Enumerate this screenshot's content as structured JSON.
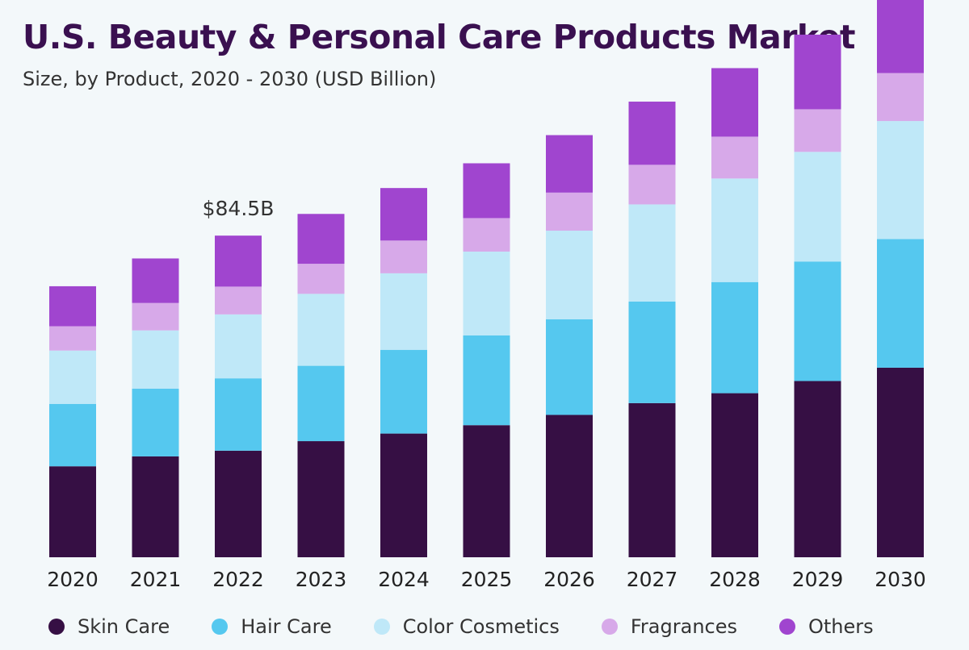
{
  "title": "U.S. Beauty & Personal Care Products Market",
  "subtitle": "Size, by Product, 2020 - 2030 (USD Billion)",
  "chart_data": {
    "type": "bar",
    "stacked": true,
    "categories": [
      "2020",
      "2021",
      "2022",
      "2023",
      "2024",
      "2025",
      "2026",
      "2027",
      "2028",
      "2029",
      "2030"
    ],
    "series": [
      {
        "name": "Skin Care",
        "color": "#360f44",
        "values": [
          23.9,
          26.5,
          28.0,
          30.5,
          32.5,
          34.7,
          37.4,
          40.5,
          43.1,
          46.3,
          49.8
        ]
      },
      {
        "name": "Hair Care",
        "color": "#55c8ef",
        "values": [
          16.4,
          17.8,
          19.0,
          19.8,
          22.0,
          23.6,
          25.1,
          26.7,
          29.2,
          31.4,
          33.8
        ]
      },
      {
        "name": "Color Cosmetics",
        "color": "#bfe8f8",
        "values": [
          14.0,
          15.3,
          16.8,
          18.9,
          20.1,
          22.0,
          23.3,
          25.5,
          27.2,
          28.8,
          31.0
        ]
      },
      {
        "name": "Fragrances",
        "color": "#d7a9e9",
        "values": [
          6.4,
          7.2,
          7.3,
          7.9,
          8.6,
          8.8,
          10.0,
          10.4,
          11.0,
          11.2,
          12.6
        ]
      },
      {
        "name": "Others",
        "color": "#a045cf",
        "values": [
          10.5,
          11.7,
          13.4,
          13.1,
          13.8,
          14.4,
          15.1,
          16.6,
          18.0,
          19.6,
          20.8
        ]
      }
    ],
    "annotations": [
      {
        "category": "2022",
        "text": "$84.5B"
      }
    ],
    "legend_position": "bottom",
    "grid": false
  }
}
